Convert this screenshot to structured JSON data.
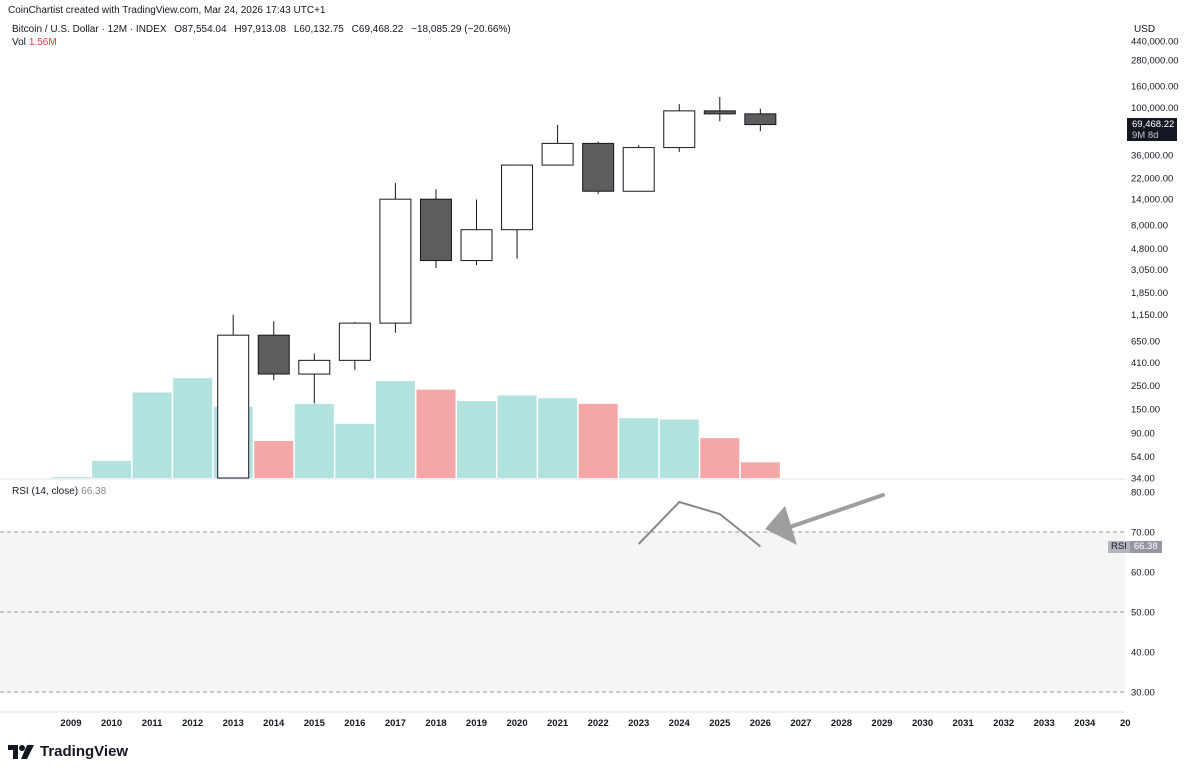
{
  "header": {
    "credit": "CoinChartist created with TradingView.com, Mar 24, 2026 17:43 UTC+1",
    "symbol_desc": "Bitcoin / U.S. Dollar · 12M · INDEX",
    "open": "O87,554.04",
    "high": "H97,913.08",
    "low": "L60,132.75",
    "close": "C69,468.22",
    "change": "−18,085.29 (−20.66%)",
    "vol_label": "Vol",
    "vol_value": "1.56M"
  },
  "rsi_legend": {
    "label": "RSI (14, close)",
    "value": "66.38"
  },
  "price_scale": {
    "currency": "USD",
    "labels": [
      "440,000.00",
      "280,000.00",
      "160,000.00",
      "100,000.00",
      "60,000.00",
      "36,000.00",
      "22,000.00",
      "14,000.00",
      "8,000.00",
      "4,800.00",
      "3,050.00",
      "1,850.00",
      "1,150.00",
      "650.00",
      "410.00",
      "250.00",
      "150.00",
      "90.00",
      "54.00",
      "34.00"
    ],
    "last_price": "69,468.22",
    "countdown": "9M 8d"
  },
  "rsi_scale": {
    "labels": [
      "80.00",
      "70.00",
      "60.00",
      "50.00",
      "40.00",
      "30.00"
    ],
    "tag_label": "RSI",
    "tag_value": "66.38"
  },
  "time_axis": [
    "2009",
    "2010",
    "2011",
    "2012",
    "2013",
    "2014",
    "2015",
    "2016",
    "2017",
    "2018",
    "2019",
    "2020",
    "2021",
    "2022",
    "2023",
    "2024",
    "2025",
    "2026",
    "2027",
    "2028",
    "2029",
    "2030",
    "2031",
    "2032",
    "2033",
    "2034",
    "20"
  ],
  "brand": {
    "name": "TradingView"
  },
  "colors": {
    "bull_body": "#ffffff",
    "bear_body": "#5d5d5d",
    "wick": "#131722",
    "vol_up": "#b2e2de",
    "vol_down": "#f5a6a6",
    "rsi_line": "#888888",
    "rsi_band": "#f5f5f5",
    "arrow": "#9e9e9e"
  },
  "chart_data": [
    {
      "type": "candlestick",
      "title": "Bitcoin / U.S. Dollar · 12M · INDEX",
      "y_scale": "log",
      "x": [
        "2013",
        "2014",
        "2015",
        "2016",
        "2017",
        "2018",
        "2019",
        "2020",
        "2021",
        "2022",
        "2023",
        "2024",
        "2025",
        "2026"
      ],
      "open": [
        13.5,
        740,
        320,
        430,
        960,
        13900,
        3700,
        7200,
        29000,
        46300,
        16500,
        42300,
        93400,
        87554.04
      ],
      "high": [
        1150,
        1000,
        500,
        980,
        19700,
        17200,
        13800,
        29300,
        69000,
        48200,
        44700,
        108000,
        126000,
        97913.08
      ],
      "low": [
        13.3,
        280,
        170,
        350,
        780,
        3150,
        3350,
        3850,
        28800,
        15500,
        16500,
        38500,
        74500,
        60132.75
      ],
      "close": [
        740,
        320,
        430,
        960,
        13900,
        3700,
        7200,
        29000,
        46300,
        16500,
        42300,
        93400,
        87554,
        69468.22
      ],
      "ylim": [
        34,
        440000
      ]
    },
    {
      "type": "bar",
      "title": "Vol",
      "x": [
        "2009",
        "2010",
        "2011",
        "2012",
        "2013",
        "2014",
        "2015",
        "2016",
        "2017",
        "2018",
        "2019",
        "2020",
        "2021",
        "2022",
        "2023",
        "2024",
        "2025",
        "2026"
      ],
      "values": [
        0.03,
        0.6,
        3.0,
        3.5,
        2.5,
        1.3,
        2.6,
        1.9,
        3.4,
        3.1,
        2.7,
        2.9,
        2.8,
        2.6,
        2.1,
        2.05,
        1.4,
        0.55
      ],
      "direction": [
        "up",
        "up",
        "up",
        "up",
        "up",
        "down",
        "up",
        "up",
        "up",
        "down",
        "up",
        "up",
        "up",
        "down",
        "up",
        "up",
        "down",
        "down"
      ],
      "units": "relative volume (unscaled)"
    },
    {
      "type": "line",
      "title": "RSI (14, close)",
      "x": [
        "2023",
        "2024",
        "2025",
        "2026"
      ],
      "values": [
        67,
        77.5,
        74.5,
        66.38
      ],
      "ylim": [
        28,
        83
      ],
      "band": [
        30,
        70
      ],
      "levels": [
        70,
        50,
        30
      ]
    }
  ]
}
